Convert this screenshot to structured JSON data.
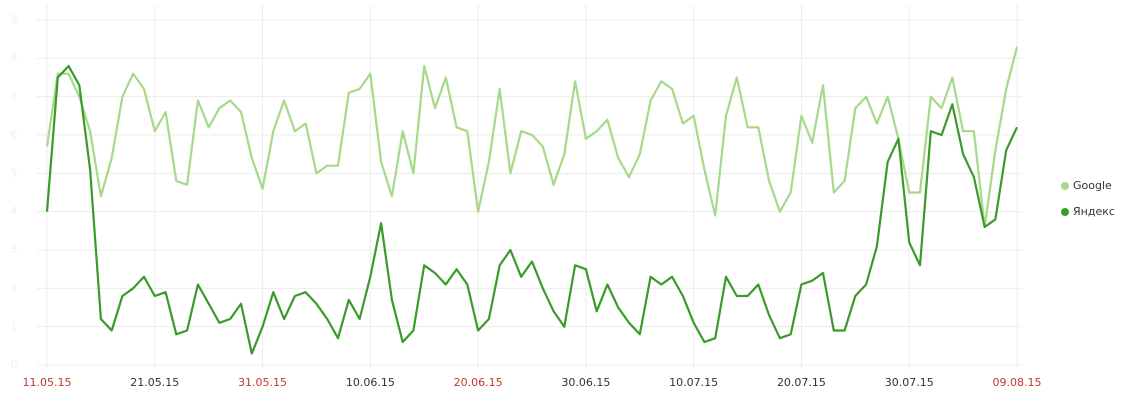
{
  "chart_data": {
    "type": "line",
    "categories": [
      "11.05.15",
      null,
      null,
      null,
      null,
      null,
      null,
      null,
      null,
      null,
      "21.05.15",
      null,
      null,
      null,
      null,
      null,
      null,
      null,
      null,
      null,
      "31.05.15",
      null,
      null,
      null,
      null,
      null,
      null,
      null,
      null,
      null,
      "10.06.15",
      null,
      null,
      null,
      null,
      null,
      null,
      null,
      null,
      null,
      "20.06.15",
      null,
      null,
      null,
      null,
      null,
      null,
      null,
      null,
      null,
      "30.06.15",
      null,
      null,
      null,
      null,
      null,
      null,
      null,
      null,
      null,
      "10.07.15",
      null,
      null,
      null,
      null,
      null,
      null,
      null,
      null,
      null,
      "20.07.15",
      null,
      null,
      null,
      null,
      null,
      null,
      null,
      null,
      null,
      "30.07.15",
      null,
      null,
      null,
      null,
      null,
      null,
      null,
      null,
      null,
      "09.08.15"
    ],
    "holidays": [
      0,
      20,
      40,
      90
    ],
    "holiday_color": "#c0392b",
    "series": [
      {
        "name": "Google",
        "color": "#a6d98a",
        "values": [
          5.7,
          7.6,
          7.6,
          7.0,
          6.1,
          4.4,
          5.4,
          7.0,
          7.6,
          7.2,
          6.1,
          6.6,
          4.8,
          4.7,
          6.9,
          6.2,
          6.7,
          6.9,
          6.6,
          5.4,
          4.6,
          6.1,
          6.9,
          6.1,
          6.3,
          5.0,
          5.2,
          5.2,
          7.1,
          7.2,
          7.6,
          5.3,
          4.4,
          6.1,
          5.0,
          7.8,
          6.7,
          7.5,
          6.2,
          6.1,
          4.0,
          5.3,
          7.2,
          5.0,
          6.1,
          6.0,
          5.7,
          4.7,
          5.5,
          7.4,
          5.9,
          6.1,
          6.4,
          5.4,
          4.9,
          5.5,
          6.9,
          7.4,
          7.2,
          6.3,
          6.5,
          5.1,
          3.9,
          6.5,
          7.5,
          6.2,
          6.2,
          4.8,
          4.0,
          4.5,
          6.5,
          5.8,
          7.3,
          4.5,
          4.8,
          6.7,
          7.0,
          6.3,
          7.0,
          5.9,
          4.5,
          4.5,
          7.0,
          6.7,
          7.5,
          6.1,
          6.1,
          3.6,
          5.6,
          7.2,
          8.3
        ]
      },
      {
        "name": "Яндекс",
        "color": "#3a9a2a",
        "values": [
          4.0,
          7.5,
          7.8,
          7.3,
          5.1,
          1.2,
          0.9,
          1.8,
          2.0,
          2.3,
          1.8,
          1.9,
          0.8,
          0.9,
          2.1,
          1.6,
          1.1,
          1.2,
          1.6,
          0.3,
          1.0,
          1.9,
          1.2,
          1.8,
          1.9,
          1.6,
          1.2,
          0.7,
          1.7,
          1.2,
          2.3,
          3.7,
          1.7,
          0.6,
          0.9,
          2.6,
          2.4,
          2.1,
          2.5,
          2.1,
          0.9,
          1.2,
          2.6,
          3.0,
          2.3,
          2.7,
          2.0,
          1.4,
          1.0,
          2.6,
          2.5,
          1.4,
          2.1,
          1.5,
          1.1,
          0.8,
          2.3,
          2.1,
          2.3,
          1.8,
          1.1,
          0.6,
          0.7,
          2.3,
          1.8,
          1.8,
          2.1,
          1.3,
          0.7,
          0.8,
          2.1,
          2.2,
          2.4,
          0.9,
          0.9,
          1.8,
          2.1,
          3.1,
          5.3,
          5.9,
          3.2,
          2.6,
          6.1,
          6.0,
          6.8,
          5.5,
          4.9,
          3.6,
          3.8,
          5.6,
          6.2
        ]
      }
    ],
    "ylim": [
      0,
      9
    ],
    "yticks": [
      0,
      1,
      2,
      3,
      4,
      5,
      6,
      7,
      8,
      9
    ],
    "grid": true
  }
}
